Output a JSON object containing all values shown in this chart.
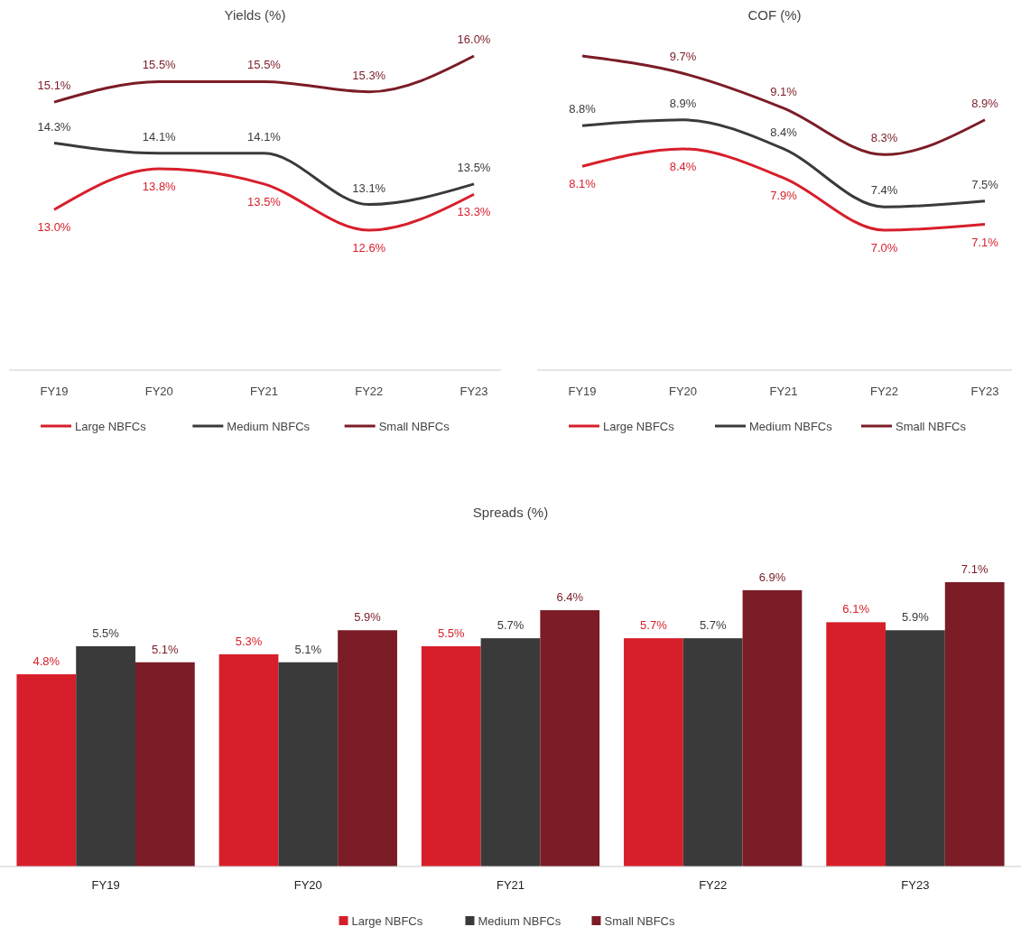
{
  "chart_data": [
    {
      "type": "line",
      "title": "Yields (%)",
      "categories": [
        "FY19",
        "FY20",
        "FY21",
        "FY22",
        "FY23"
      ],
      "legend": "bottom",
      "marker": "none",
      "line_style": "solid",
      "series": [
        {
          "name": "Large NBFCs",
          "color": "#d71f2b",
          "values": [
            13.0,
            13.8,
            13.5,
            12.6,
            13.3
          ],
          "value_labels": [
            "13.0%",
            "13.8%",
            "13.5%",
            "12.6%",
            "13.3%"
          ]
        },
        {
          "name": "Medium NBFCs",
          "color": "#3a3a3a",
          "values": [
            14.3,
            14.1,
            14.1,
            13.1,
            13.5
          ],
          "value_labels": [
            "14.3%",
            "14.1%",
            "14.1%",
            "13.1%",
            "13.5%"
          ]
        },
        {
          "name": "Small NBFCs",
          "color": "#7b1c26",
          "values": [
            15.1,
            15.5,
            15.5,
            15.3,
            16.0
          ],
          "value_labels": [
            "15.1%",
            "15.5%",
            "15.5%",
            "15.3%",
            "16.0%"
          ]
        }
      ]
    },
    {
      "type": "line",
      "title": "COF (%)",
      "categories": [
        "FY19",
        "FY20",
        "FY21",
        "FY22",
        "FY23"
      ],
      "legend": "bottom",
      "marker": "none",
      "line_style": "solid",
      "series": [
        {
          "name": "Large NBFCs",
          "color": "#d71f2b",
          "values": [
            8.1,
            8.4,
            7.9,
            7.0,
            7.1
          ],
          "value_labels": [
            "8.1%",
            "8.4%",
            "7.9%",
            "7.0%",
            "7.1%"
          ]
        },
        {
          "name": "Medium NBFCs",
          "color": "#3a3a3a",
          "values": [
            8.8,
            8.9,
            8.4,
            7.4,
            7.5
          ],
          "value_labels": [
            "8.8%",
            "8.9%",
            "8.4%",
            "7.4%",
            "7.5%"
          ]
        },
        {
          "name": "Small NBFCs",
          "color": "#7b1c26",
          "values": [
            10.0,
            9.7,
            9.1,
            8.3,
            8.9
          ],
          "value_labels": [
            null,
            "9.7%",
            "9.1%",
            "8.3%",
            "8.9%"
          ]
        }
      ]
    },
    {
      "type": "bar",
      "title": "Spreads (%)",
      "categories": [
        "FY19",
        "FY20",
        "FY21",
        "FY22",
        "FY23"
      ],
      "legend": "bottom",
      "series": [
        {
          "name": "Large NBFCs",
          "color": "#d71f2b",
          "values": [
            4.8,
            5.3,
            5.5,
            5.7,
            6.1
          ],
          "value_labels": [
            "4.8%",
            "5.3%",
            "5.5%",
            "5.7%",
            "6.1%"
          ]
        },
        {
          "name": "Medium NBFCs",
          "color": "#3a3a3a",
          "values": [
            5.5,
            5.1,
            5.7,
            5.7,
            5.9
          ],
          "value_labels": [
            "5.5%",
            "5.1%",
            "5.7%",
            "5.7%",
            "5.9%"
          ]
        },
        {
          "name": "Small NBFCs",
          "color": "#7b1c26",
          "values": [
            5.1,
            5.9,
            6.4,
            6.9,
            7.1
          ],
          "value_labels": [
            "5.1%",
            "5.9%",
            "6.4%",
            "6.9%",
            "7.1%"
          ]
        }
      ]
    }
  ]
}
